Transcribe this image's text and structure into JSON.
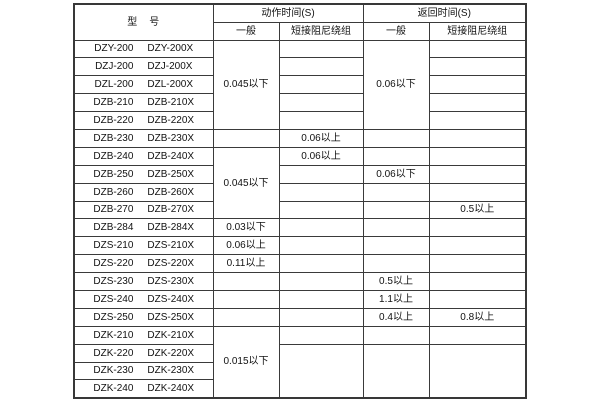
{
  "table": {
    "header": {
      "model": "型　号",
      "action_time": "动作时间(S)",
      "return_time": "返回时间(S)",
      "general": "一般",
      "damping": "短接阻尼绕组"
    },
    "rows": [
      {
        "model_a": "DZY-200",
        "model_b": "DZY-200X"
      },
      {
        "model_a": "DZJ-200",
        "model_b": "DZJ-200X"
      },
      {
        "model_a": "DZL-200",
        "model_b": "DZL-200X"
      },
      {
        "model_a": "DZB-210",
        "model_b": "DZB-210X"
      },
      {
        "model_a": "DZB-220",
        "model_b": "DZB-220X"
      },
      {
        "model_a": "DZB-230",
        "model_b": "DZB-230X"
      },
      {
        "model_a": "DZB-240",
        "model_b": "DZB-240X"
      },
      {
        "model_a": "DZB-250",
        "model_b": "DZB-250X"
      },
      {
        "model_a": "DZB-260",
        "model_b": "DZB-260X"
      },
      {
        "model_a": "DZB-270",
        "model_b": "DZB-270X"
      },
      {
        "model_a": "DZB-284",
        "model_b": "DZB-284X"
      },
      {
        "model_a": "DZS-210",
        "model_b": "DZS-210X"
      },
      {
        "model_a": "DZS-220",
        "model_b": "DZS-220X"
      },
      {
        "model_a": "DZS-230",
        "model_b": "DZS-230X"
      },
      {
        "model_a": "DZS-240",
        "model_b": "DZS-240X"
      },
      {
        "model_a": "DZS-250",
        "model_b": "DZS-250X"
      },
      {
        "model_a": "DZK-210",
        "model_b": "DZK-210X"
      },
      {
        "model_a": "DZK-220",
        "model_b": "DZK-220X"
      },
      {
        "model_a": "DZK-230",
        "model_b": "DZK-230X"
      },
      {
        "model_a": "DZK-240",
        "model_b": "DZK-240X"
      }
    ],
    "columns": {
      "action_general": [
        {
          "span": 5,
          "v": "0.045以下"
        },
        {
          "span": 1,
          "v": ""
        },
        {
          "span": 4,
          "v": "0.045以下"
        },
        {
          "span": 1,
          "v": "0.03以下"
        },
        {
          "span": 1,
          "v": "0.06以上"
        },
        {
          "span": 1,
          "v": "0.11以上"
        },
        {
          "span": 1,
          "v": ""
        },
        {
          "span": 1,
          "v": ""
        },
        {
          "span": 1,
          "v": ""
        },
        {
          "span": 4,
          "v": "0.015以下"
        }
      ],
      "action_damping": [
        {
          "span": 1,
          "v": ""
        },
        {
          "span": 1,
          "v": ""
        },
        {
          "span": 1,
          "v": ""
        },
        {
          "span": 1,
          "v": ""
        },
        {
          "span": 1,
          "v": ""
        },
        {
          "span": 1,
          "v": "0.06以上"
        },
        {
          "span": 1,
          "v": "0.06以上"
        },
        {
          "span": 1,
          "v": ""
        },
        {
          "span": 1,
          "v": ""
        },
        {
          "span": 1,
          "v": ""
        },
        {
          "span": 1,
          "v": ""
        },
        {
          "span": 1,
          "v": ""
        },
        {
          "span": 1,
          "v": ""
        },
        {
          "span": 1,
          "v": ""
        },
        {
          "span": 1,
          "v": ""
        },
        {
          "span": 1,
          "v": ""
        },
        {
          "span": 1,
          "v": ""
        },
        {
          "span": 3,
          "v": ""
        }
      ],
      "return_general": [
        {
          "span": 5,
          "v": "0.06以下"
        },
        {
          "span": 1,
          "v": ""
        },
        {
          "span": 1,
          "v": ""
        },
        {
          "span": 1,
          "v": "0.06以下"
        },
        {
          "span": 1,
          "v": ""
        },
        {
          "span": 1,
          "v": ""
        },
        {
          "span": 1,
          "v": ""
        },
        {
          "span": 1,
          "v": ""
        },
        {
          "span": 1,
          "v": ""
        },
        {
          "span": 1,
          "v": "0.5以上"
        },
        {
          "span": 1,
          "v": "1.1以上"
        },
        {
          "span": 1,
          "v": "0.4以上"
        },
        {
          "span": 1,
          "v": ""
        },
        {
          "span": 3,
          "v": ""
        }
      ],
      "return_damping": [
        {
          "span": 1,
          "v": ""
        },
        {
          "span": 1,
          "v": ""
        },
        {
          "span": 1,
          "v": ""
        },
        {
          "span": 1,
          "v": ""
        },
        {
          "span": 1,
          "v": ""
        },
        {
          "span": 1,
          "v": ""
        },
        {
          "span": 1,
          "v": ""
        },
        {
          "span": 1,
          "v": ""
        },
        {
          "span": 1,
          "v": ""
        },
        {
          "span": 1,
          "v": "0.5以上"
        },
        {
          "span": 1,
          "v": ""
        },
        {
          "span": 1,
          "v": ""
        },
        {
          "span": 1,
          "v": ""
        },
        {
          "span": 1,
          "v": ""
        },
        {
          "span": 1,
          "v": ""
        },
        {
          "span": 1,
          "v": "0.8以上"
        },
        {
          "span": 1,
          "v": ""
        },
        {
          "span": 3,
          "v": ""
        }
      ]
    },
    "colors": {
      "border": "#3a3a3a",
      "background": "#ffffff",
      "text": "#111111"
    }
  }
}
